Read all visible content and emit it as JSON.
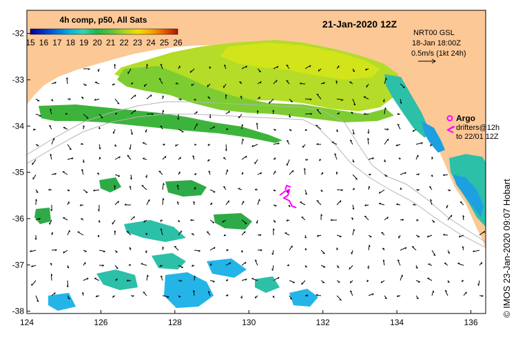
{
  "map": {
    "date_title": "21-Jan-2020 12Z",
    "colorbar": {
      "title": "4h comp, p50, All Sats",
      "ticks": [
        "15",
        "16",
        "17",
        "18",
        "19",
        "20",
        "21",
        "22",
        "23",
        "24",
        "25",
        "26"
      ],
      "min": 15,
      "max": 26,
      "colors": [
        "#00008c",
        "#0033cc",
        "#0070e0",
        "#00b4e6",
        "#33d6b0",
        "#19b84a",
        "#5cc43a",
        "#a8d81e",
        "#f0e000",
        "#f6a800",
        "#e85a00",
        "#aa1400"
      ]
    },
    "current_legend": {
      "model": "NRT00 GSL",
      "time": "18-Jan 18:00Z",
      "scale": "0.5m/s (1kt 24h)"
    },
    "argo_legend": {
      "label": "Argo",
      "drifters_line1": "drifters@12h",
      "drifters_line2": "to 22/01 12Z"
    },
    "credit": "© IMOS 23-Jan-2020 09:07 Hobart",
    "lat_ticks": [
      "-32",
      "-33",
      "-34",
      "-35",
      "-36",
      "-37",
      "-38"
    ],
    "lon_ticks": [
      "124",
      "126",
      "128",
      "130",
      "132",
      "134",
      "136"
    ],
    "lon_range": [
      124,
      136.4
    ],
    "lat_range": [
      -31.5,
      -38.05
    ],
    "colors": {
      "land": "#fcc896",
      "sea": "#ffffff",
      "argo": "#ff00ff",
      "bathymetry": "#b4b4b4"
    }
  }
}
